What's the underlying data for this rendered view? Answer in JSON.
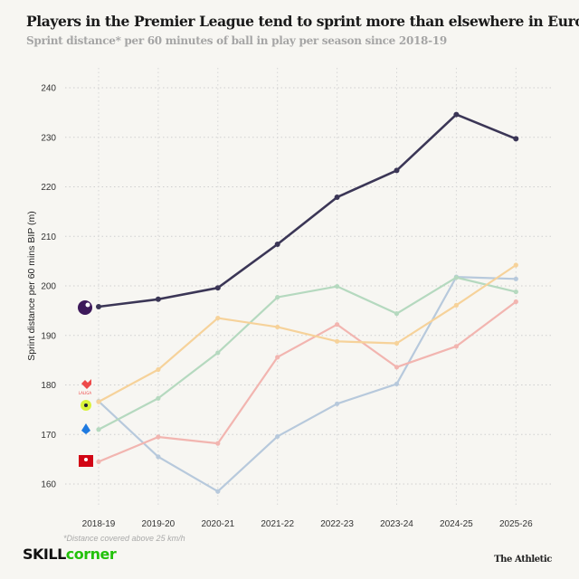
{
  "chart_data": {
    "type": "line",
    "title": "Players in the Premier League tend to sprint more than elsewhere in Europe",
    "subtitle": "Sprint distance* per 60 minutes of ball in play per season since 2018-19",
    "xlabel": "",
    "ylabel": "Sprint distance per 60 mins BIP (m)",
    "ylim": [
      155,
      245
    ],
    "yticks": [
      160,
      170,
      180,
      190,
      200,
      210,
      220,
      230,
      240
    ],
    "grid": true,
    "categories": [
      "2018-19",
      "2019-20",
      "2020-21",
      "2021-22",
      "2022-23",
      "2023-24",
      "2024-25",
      "2025-26"
    ],
    "series": [
      {
        "logo": "Premier League",
        "color": "#3b3656",
        "values": [
          195.8,
          197.3,
          199.6,
          208.4,
          217.9,
          223.3,
          234.6,
          229.7
        ]
      },
      {
        "logo": "LaLiga",
        "color": "#f6d29a",
        "values": [
          176.6,
          183.1,
          193.5,
          191.7,
          188.8,
          188.4,
          196.1,
          204.2
        ]
      },
      {
        "logo": "Ligue 1",
        "color": "#b5d9bf",
        "values": [
          171.0,
          177.3,
          186.5,
          197.7,
          199.9,
          194.4,
          201.7,
          198.8
        ]
      },
      {
        "logo": "Bundesliga",
        "color": "#f2b5b0",
        "values": [
          164.5,
          169.5,
          168.2,
          185.6,
          192.2,
          183.6,
          187.8,
          196.8
        ]
      },
      {
        "logo": "Serie A",
        "color": "#b7c9dc",
        "values": [
          176.7,
          165.5,
          158.5,
          169.6,
          176.2,
          180.2,
          201.8,
          201.4
        ]
      }
    ],
    "footnote": "*Distance covered above 25 km/h"
  },
  "logos": {
    "premier_league": "Premier League",
    "laliga": "LALIGA",
    "ligue1": "LIGUE 1",
    "serie_a": "SERIE A",
    "bundesliga": "BUNDESLIGA"
  },
  "brand": {
    "part1": "SKILL",
    "part2": "corner",
    "publisher": "The Athletic"
  }
}
